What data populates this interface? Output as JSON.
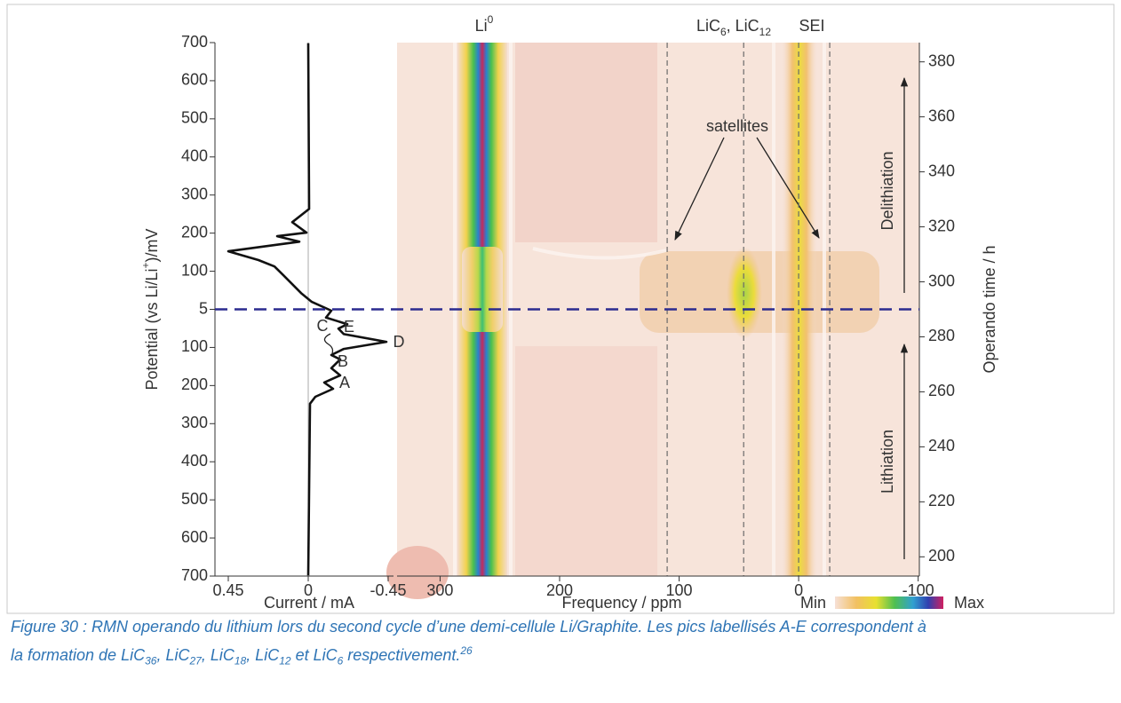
{
  "chart_data": [
    {
      "type": "line",
      "xlabel": "Current / mA",
      "ylabel_parts": [
        "Potential (vs Li/Li",
        "+",
        ")/mV"
      ],
      "ycategories": [
        "700",
        "600",
        "500",
        "400",
        "300",
        "200",
        "100",
        "5",
        "100",
        "200",
        "300",
        "400",
        "500",
        "600",
        "700"
      ],
      "xlim": [
        0.525,
        -0.48
      ],
      "xticks": [
        0.45,
        0,
        -0.45
      ],
      "ylim": [
        193,
        387
      ],
      "time": [
        386.8,
        326.5,
        321.7,
        317.9,
        316.6,
        314.6,
        311.1,
        307.9,
        305.6,
        302.4,
        295.9,
        292.7,
        289.5,
        287.0,
        284.6,
        283.0,
        281.0,
        278.2,
        275.6,
        273.4,
        271.8,
        268.6,
        266.0,
        263.4,
        261.1,
        258.2,
        255.7,
        193.2
      ],
      "values": [
        0,
        -0.005,
        0.09,
        0.01,
        0.175,
        0.05,
        0.45,
        0.28,
        0.19,
        0.14,
        0.04,
        -0.02,
        -0.13,
        -0.1,
        -0.22,
        -0.17,
        -0.2,
        -0.44,
        -0.2,
        -0.13,
        -0.18,
        -0.13,
        -0.18,
        -0.09,
        -0.14,
        -0.04,
        -0.01,
        0
      ],
      "peak_letters": [
        "A",
        "B",
        "C",
        "D",
        "E"
      ],
      "color": "#111111"
    },
    {
      "type": "heatmap",
      "xlabel": "Frequency / ppm",
      "y2label": "Operando time / h",
      "xlim": [
        336,
        -101
      ],
      "xticks": [
        300,
        200,
        100,
        0,
        -100
      ],
      "y2lim": [
        193,
        387
      ],
      "y2ticks": [
        200,
        220,
        240,
        260,
        280,
        300,
        320,
        340,
        360,
        380
      ],
      "reference_lines": [
        110,
        46,
        0,
        -26
      ],
      "peak_labels": [
        [
          "Li",
          "0"
        ],
        [
          "LiC",
          "6",
          ", LiC",
          "12"
        ],
        [
          "SEI"
        ]
      ],
      "colorbar": [
        "Min",
        "Max"
      ],
      "annotations": [
        "satellites",
        "Delithiation",
        "Lithiation"
      ]
    }
  ],
  "caption": {
    "parts": [
      "Figure 30 : RMN operando du lithium lors du second cycle d’une demi-cellule Li/Graphite. Les pics labellisés A-E correspondent à",
      "la formation de LiC",
      "36",
      ", LiC",
      "27",
      ", LiC",
      "18",
      ", LiC",
      "12",
      " et LiC",
      "6",
      " respectivement.",
      "26"
    ]
  }
}
